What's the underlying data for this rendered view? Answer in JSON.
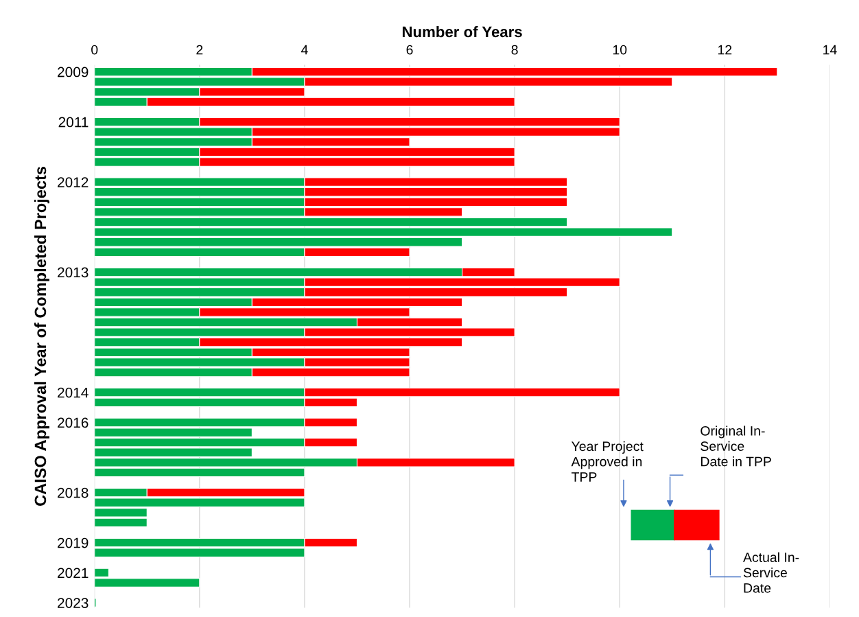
{
  "chart_data": {
    "type": "bar",
    "orientation": "horizontal",
    "stacked": true,
    "xlabel": "Number of Years",
    "ylabel": "CAISO Approval Year of Completed Projects",
    "categories": [
      "2009",
      null,
      null,
      null,
      null,
      "2011",
      null,
      null,
      null,
      null,
      null,
      "2012",
      null,
      null,
      null,
      null,
      null,
      null,
      null,
      null,
      "2013",
      null,
      null,
      null,
      null,
      null,
      null,
      null,
      null,
      null,
      null,
      null,
      "2014",
      null,
      null,
      "2016",
      null,
      null,
      null,
      null,
      null,
      null,
      "2018",
      null,
      null,
      null,
      null,
      "2019",
      null,
      null,
      "2021",
      null,
      null,
      "2023"
    ],
    "series": [
      {
        "color": "#00b050",
        "values": [
          3,
          4,
          2,
          1,
          null,
          2,
          3,
          3,
          2,
          2,
          null,
          4,
          4,
          4,
          4,
          9,
          11,
          7,
          4,
          null,
          7,
          4,
          4,
          3,
          2,
          5,
          4,
          2,
          3,
          4,
          3,
          null,
          4,
          4,
          null,
          4,
          3,
          4,
          3,
          5,
          4,
          null,
          1,
          4,
          1,
          1,
          null,
          4,
          4,
          null,
          0.27,
          2,
          null,
          0.03
        ]
      },
      {
        "color": "#ff0000",
        "values": [
          10,
          7,
          2,
          7,
          null,
          8,
          7,
          3,
          6,
          6,
          null,
          5,
          5,
          5,
          3,
          null,
          null,
          null,
          2,
          null,
          1,
          6,
          5,
          4,
          4,
          2,
          4,
          5,
          3,
          2,
          3,
          null,
          6,
          1,
          null,
          1,
          null,
          1,
          null,
          3,
          null,
          null,
          3,
          null,
          null,
          null,
          null,
          1,
          null,
          null,
          null,
          null,
          null,
          null
        ]
      }
    ],
    "xlim": [
      0,
      14
    ],
    "xticks": [
      0,
      2,
      4,
      6,
      8,
      10,
      12,
      14
    ],
    "grid": "x",
    "legend": false,
    "annotations": [
      "Year Project\nApproved in\nTPP",
      "Original In-\nService\nDate in TPP",
      "Actual In-\nService\nDate"
    ]
  }
}
